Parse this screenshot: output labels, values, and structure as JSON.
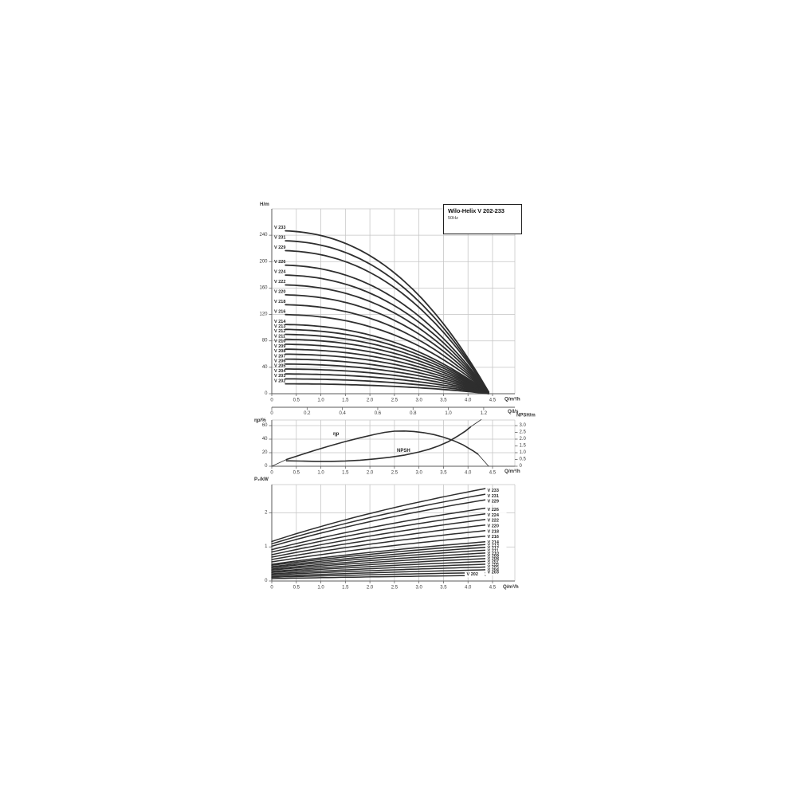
{
  "title_box": {
    "title": "Wilo-Helix V 202-233",
    "subtitle": "50Hz"
  },
  "chart_data": [
    {
      "id": "head-flow-curves",
      "type": "line",
      "title": "Wilo-Helix V 202-233 50Hz head vs flow curves",
      "ylabel": "H/m",
      "xlabel": "Q/m³/h",
      "xlabel_secondary": "Q/l/s",
      "xlim": [
        0,
        4.95
      ],
      "ylim": [
        0,
        280
      ],
      "grid": true,
      "x_ticks": [
        "0",
        "0.5",
        "1.0",
        "1.5",
        "2.0",
        "2.5",
        "3.0",
        "3.5",
        "4.0",
        "4.5"
      ],
      "x_ticks_secondary": [
        "0",
        "0.2",
        "0.4",
        "0.6",
        "0.8",
        "1.0",
        "1.2"
      ],
      "y_ticks": [
        "0",
        "40",
        "80",
        "120",
        "160",
        "200",
        "240"
      ],
      "curve_model": "H(Q) ≈ H0·(1−(Q/4.44)^2.35) for Q = 0.28…4.42 m³/h; all curves converge to H≈0 at Q≈4.4 m³/h",
      "series": [
        {
          "name": "V 233",
          "shutoff_head_m": 247
        },
        {
          "name": "V 231",
          "shutoff_head_m": 232
        },
        {
          "name": "V 229",
          "shutoff_head_m": 217
        },
        {
          "name": "V 226",
          "shutoff_head_m": 195
        },
        {
          "name": "V 224",
          "shutoff_head_m": 180
        },
        {
          "name": "V 222",
          "shutoff_head_m": 165
        },
        {
          "name": "V 220",
          "shutoff_head_m": 150
        },
        {
          "name": "V 218",
          "shutoff_head_m": 135
        },
        {
          "name": "V 216",
          "shutoff_head_m": 120
        },
        {
          "name": "V 214",
          "shutoff_head_m": 105
        },
        {
          "name": "V 213",
          "shutoff_head_m": 97.5
        },
        {
          "name": "V 212",
          "shutoff_head_m": 90
        },
        {
          "name": "V 211",
          "shutoff_head_m": 82.5
        },
        {
          "name": "V 210",
          "shutoff_head_m": 75
        },
        {
          "name": "V 209",
          "shutoff_head_m": 67.5
        },
        {
          "name": "V 208",
          "shutoff_head_m": 60
        },
        {
          "name": "V 207",
          "shutoff_head_m": 52.5
        },
        {
          "name": "V 206",
          "shutoff_head_m": 45
        },
        {
          "name": "V 205",
          "shutoff_head_m": 37.5
        },
        {
          "name": "V 204",
          "shutoff_head_m": 30
        },
        {
          "name": "V 203",
          "shutoff_head_m": 22.5
        },
        {
          "name": "V 202",
          "shutoff_head_m": 15
        }
      ]
    },
    {
      "id": "efficiency-npsh",
      "type": "line",
      "ylabel_left": "ηp/%",
      "ylabel_right": "NPSH/m",
      "xlabel": "Q/m³/h",
      "xlim": [
        0,
        4.95
      ],
      "ylim_left": [
        0,
        68
      ],
      "ylim_right": [
        0,
        3.4
      ],
      "grid": true,
      "x_ticks": [
        "0",
        "0.5",
        "1.0",
        "1.5",
        "2.0",
        "2.5",
        "3.0",
        "3.5",
        "4.0",
        "4.5"
      ],
      "y_ticks_left": [
        "0",
        "20",
        "40",
        "60"
      ],
      "y_ticks_right": [
        "0",
        "0.5",
        "1.0",
        "1.5",
        "2.0",
        "2.5",
        "3.0"
      ],
      "series": [
        {
          "name": "efficiency",
          "label": "ηp",
          "axis": "left",
          "points": [
            [
              0,
              0
            ],
            [
              0.3,
              10
            ],
            [
              0.6,
              17
            ],
            [
              0.9,
              24
            ],
            [
              1.2,
              30.5
            ],
            [
              1.5,
              36.5
            ],
            [
              1.8,
              42
            ],
            [
              2.1,
              47
            ],
            [
              2.3,
              50
            ],
            [
              2.5,
              51.8
            ],
            [
              2.7,
              52
            ],
            [
              2.9,
              51.3
            ],
            [
              3.1,
              49.5
            ],
            [
              3.3,
              46.8
            ],
            [
              3.5,
              43
            ],
            [
              3.7,
              38
            ],
            [
              3.9,
              31.5
            ],
            [
              4.1,
              23
            ],
            [
              4.2,
              18
            ],
            [
              4.42,
              0
            ]
          ]
        },
        {
          "name": "npsh",
          "label": "NPSH",
          "axis": "right",
          "points": [
            [
              0.3,
              0.4
            ],
            [
              0.6,
              0.38
            ],
            [
              0.9,
              0.36
            ],
            [
              1.2,
              0.36
            ],
            [
              1.5,
              0.39
            ],
            [
              1.8,
              0.45
            ],
            [
              2.1,
              0.54
            ],
            [
              2.4,
              0.66
            ],
            [
              2.7,
              0.82
            ],
            [
              3.0,
              1.05
            ],
            [
              3.2,
              1.25
            ],
            [
              3.4,
              1.5
            ],
            [
              3.6,
              1.82
            ],
            [
              3.8,
              2.25
            ],
            [
              3.95,
              2.6
            ],
            [
              4.05,
              2.9
            ],
            [
              4.15,
              3.15
            ],
            [
              4.27,
              3.45
            ]
          ]
        }
      ]
    },
    {
      "id": "power-flow",
      "type": "line",
      "ylabel": "P₂/kW",
      "xlabel": "Q/m³/h",
      "xlim": [
        0,
        4.95
      ],
      "ylim": [
        0,
        2.85
      ],
      "grid": true,
      "x_ticks": [
        "0",
        "0.5",
        "1.0",
        "1.5",
        "2.0",
        "2.5",
        "3.0",
        "3.5",
        "4.0",
        "4.5"
      ],
      "y_ticks": [
        "0",
        "1",
        "2"
      ],
      "curve_model": "P₂(Q) rises from p0_kw at Q=0 to pend_kw at Q≈4.3 m³/h",
      "series": [
        {
          "name": "V 233",
          "p0_kw": 1.16,
          "pend_kw": 2.64
        },
        {
          "name": "V 231",
          "p0_kw": 1.09,
          "pend_kw": 2.48
        },
        {
          "name": "V 229",
          "p0_kw": 1.02,
          "pend_kw": 2.32
        },
        {
          "name": "V 226",
          "p0_kw": 0.92,
          "pend_kw": 2.08
        },
        {
          "name": "V 224",
          "p0_kw": 0.85,
          "pend_kw": 1.92
        },
        {
          "name": "V 222",
          "p0_kw": 0.77,
          "pend_kw": 1.76
        },
        {
          "name": "V 220",
          "p0_kw": 0.7,
          "pend_kw": 1.6
        },
        {
          "name": "V 218",
          "p0_kw": 0.63,
          "pend_kw": 1.44
        },
        {
          "name": "V 216",
          "p0_kw": 0.56,
          "pend_kw": 1.28
        },
        {
          "name": "V 214",
          "p0_kw": 0.49,
          "pend_kw": 1.12
        },
        {
          "name": "V 213",
          "p0_kw": 0.46,
          "pend_kw": 1.04
        },
        {
          "name": "V 212",
          "p0_kw": 0.42,
          "pend_kw": 0.96
        },
        {
          "name": "V 211",
          "p0_kw": 0.39,
          "pend_kw": 0.88
        },
        {
          "name": "V 210",
          "p0_kw": 0.35,
          "pend_kw": 0.8
        },
        {
          "name": "V 209",
          "p0_kw": 0.32,
          "pend_kw": 0.72
        },
        {
          "name": "V 208",
          "p0_kw": 0.28,
          "pend_kw": 0.64
        },
        {
          "name": "V 207",
          "p0_kw": 0.25,
          "pend_kw": 0.56
        },
        {
          "name": "V 206",
          "p0_kw": 0.21,
          "pend_kw": 0.48
        },
        {
          "name": "V 205",
          "p0_kw": 0.18,
          "pend_kw": 0.4
        },
        {
          "name": "V 204",
          "p0_kw": 0.14,
          "pend_kw": 0.32
        },
        {
          "name": "V 203",
          "p0_kw": 0.11,
          "pend_kw": 0.24
        },
        {
          "name": "V 202",
          "p0_kw": 0.07,
          "pend_kw": 0.16
        }
      ]
    }
  ]
}
